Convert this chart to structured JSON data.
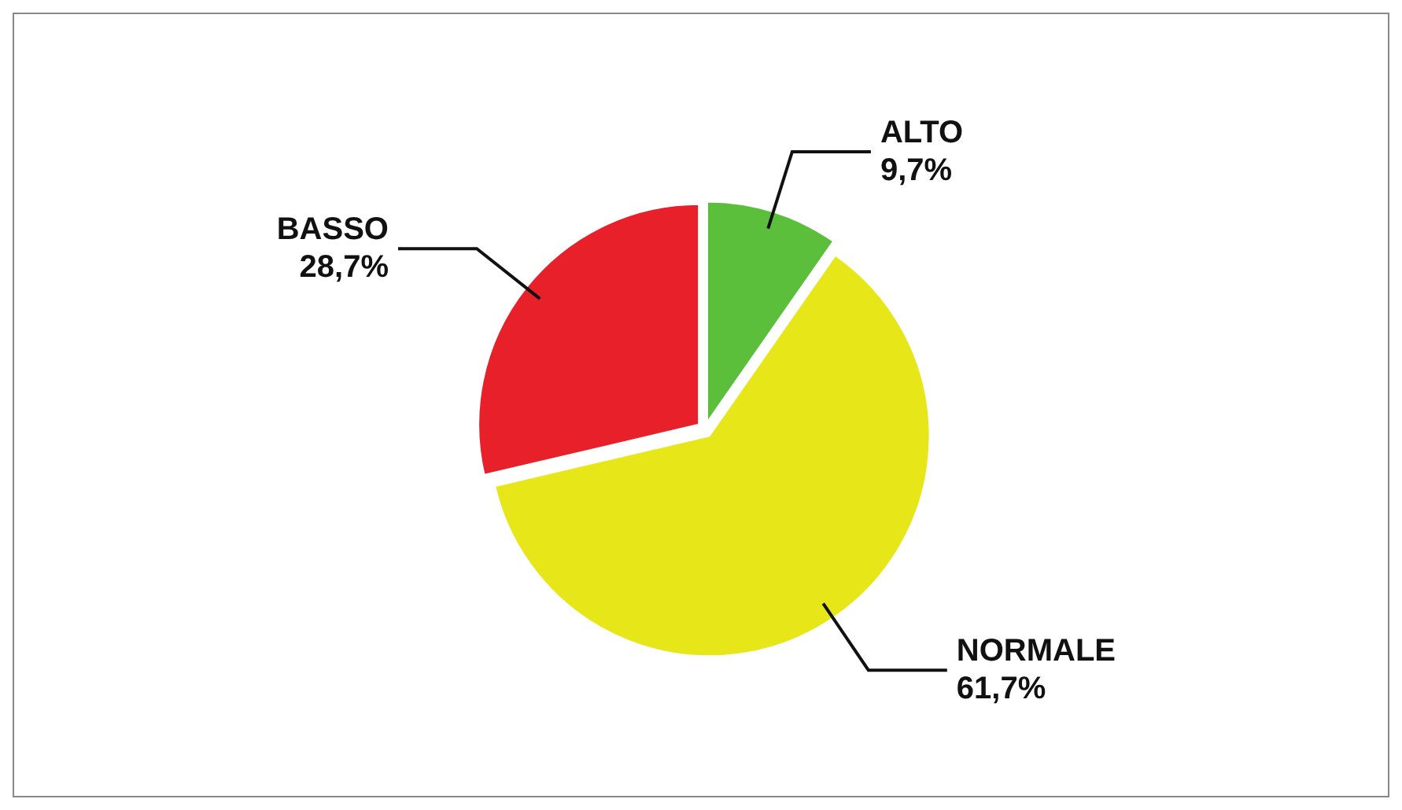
{
  "chart_data": {
    "type": "pie",
    "categories": [
      "ALTO",
      "NORMALE",
      "BASSO"
    ],
    "values": [
      9.7,
      61.7,
      28.7
    ],
    "colors": [
      "#5cbf3c",
      "#e6e619",
      "#e8202a"
    ],
    "value_labels": [
      "9,7%",
      "61,7%",
      "28,7%"
    ]
  }
}
